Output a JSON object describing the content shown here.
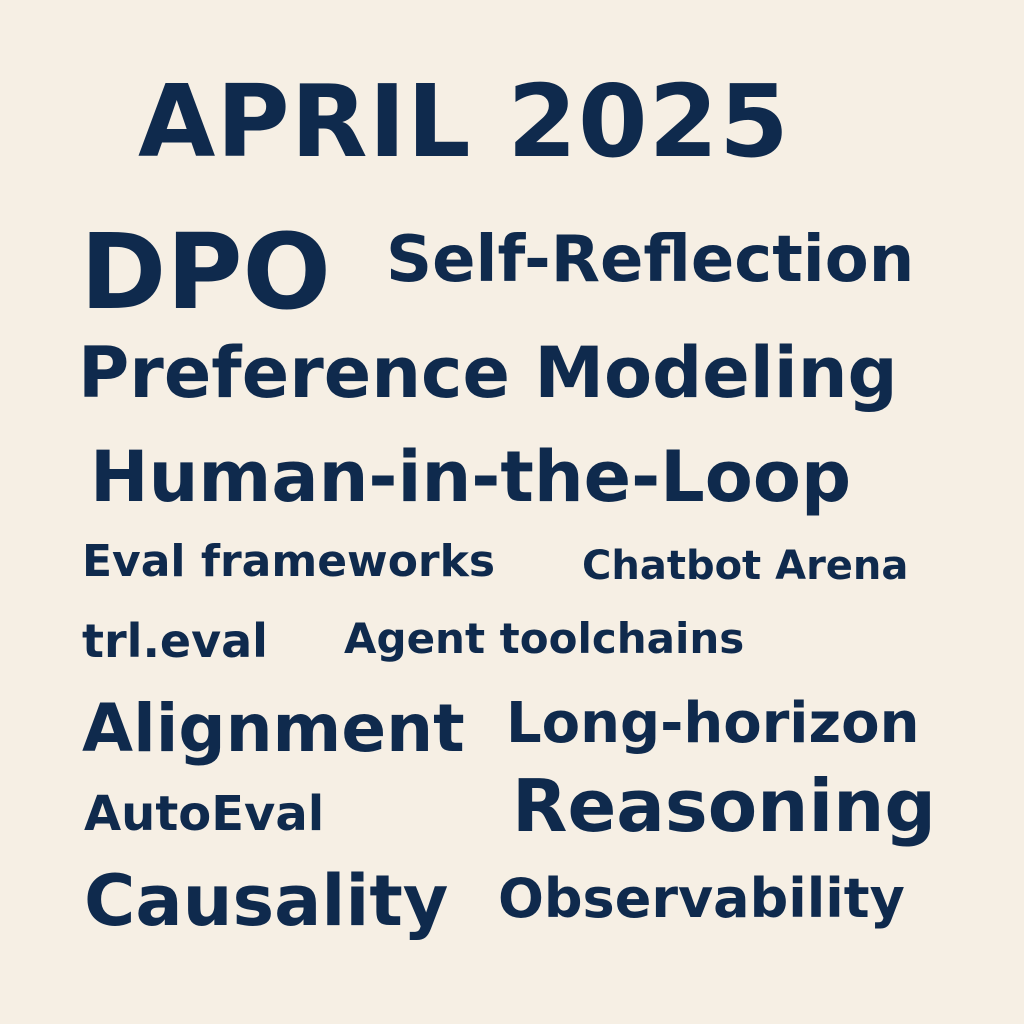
{
  "colors": {
    "background": "#f6efe4",
    "text": "#0f2a4d"
  },
  "title": "APRIL 2025",
  "words": [
    "DPO",
    "Self-Reflection",
    "Preference Modeling",
    "Human-in-the-Loop",
    "Eval frameworks",
    "Chatbot Arena",
    "trl.eval",
    "Agent toolchains",
    "Alignment",
    "Long-horizon",
    "AutoEval",
    "Reasoning",
    "Causality",
    "Observability"
  ]
}
